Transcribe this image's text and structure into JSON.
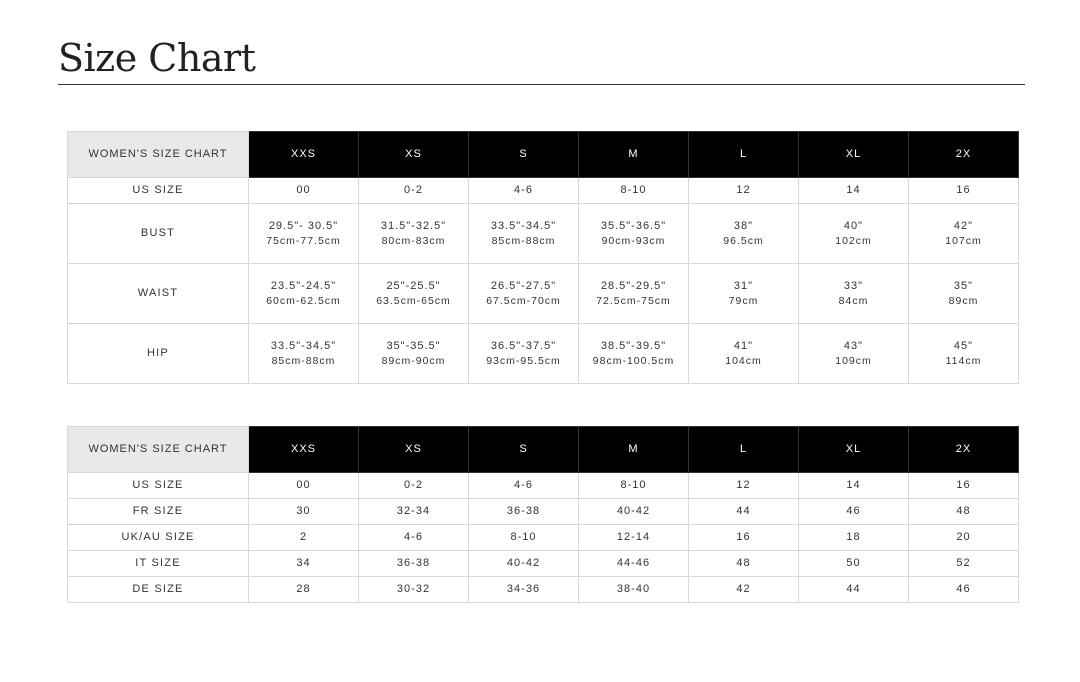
{
  "title": "Size Chart",
  "measurements_table": {
    "corner": "WOMEN'S SIZE CHART",
    "sizes": [
      "XXS",
      "XS",
      "S",
      "M",
      "L",
      "XL",
      "2X"
    ],
    "us_row": {
      "label": "US SIZE",
      "values": [
        "00",
        "0-2",
        "4-6",
        "8-10",
        "12",
        "14",
        "16"
      ]
    },
    "rows": [
      {
        "label": "BUST",
        "inches": [
          "29.5\"- 30.5\"",
          "31.5\"-32.5\"",
          "33.5\"-34.5\"",
          "35.5\"-36.5\"",
          "38\"",
          "40\"",
          "42\""
        ],
        "cm": [
          "75cm-77.5cm",
          "80cm-83cm",
          "85cm-88cm",
          "90cm-93cm",
          "96.5cm",
          "102cm",
          "107cm"
        ]
      },
      {
        "label": "WAIST",
        "inches": [
          "23.5\"-24.5\"",
          "25\"-25.5\"",
          "26.5\"-27.5\"",
          "28.5\"-29.5\"",
          "31\"",
          "33\"",
          "35\""
        ],
        "cm": [
          "60cm-62.5cm",
          "63.5cm-65cm",
          "67.5cm-70cm",
          "72.5cm-75cm",
          "79cm",
          "84cm",
          "89cm"
        ]
      },
      {
        "label": "HIP",
        "inches": [
          "33.5\"-34.5\"",
          "35\"-35.5\"",
          "36.5\"-37.5\"",
          "38.5\"-39.5\"",
          "41\"",
          "43\"",
          "45\""
        ],
        "cm": [
          "85cm-88cm",
          "89cm-90cm",
          "93cm-95.5cm",
          "98cm-100.5cm",
          "104cm",
          "109cm",
          "114cm"
        ]
      }
    ]
  },
  "conversion_table": {
    "corner": "WOMEN'S SIZE CHART",
    "sizes": [
      "XXS",
      "XS",
      "S",
      "M",
      "L",
      "XL",
      "2X"
    ],
    "rows": [
      {
        "label": "US SIZE",
        "values": [
          "00",
          "0-2",
          "4-6",
          "8-10",
          "12",
          "14",
          "16"
        ]
      },
      {
        "label": "FR SIZE",
        "values": [
          "30",
          "32-34",
          "36-38",
          "40-42",
          "44",
          "46",
          "48"
        ]
      },
      {
        "label": "UK/AU SIZE",
        "values": [
          "2",
          "4-6",
          "8-10",
          "12-14",
          "16",
          "18",
          "20"
        ]
      },
      {
        "label": "IT SIZE",
        "values": [
          "34",
          "36-38",
          "40-42",
          "44-46",
          "48",
          "50",
          "52"
        ]
      },
      {
        "label": "DE SIZE",
        "values": [
          "28",
          "30-32",
          "34-36",
          "38-40",
          "42",
          "44",
          "46"
        ]
      }
    ]
  }
}
